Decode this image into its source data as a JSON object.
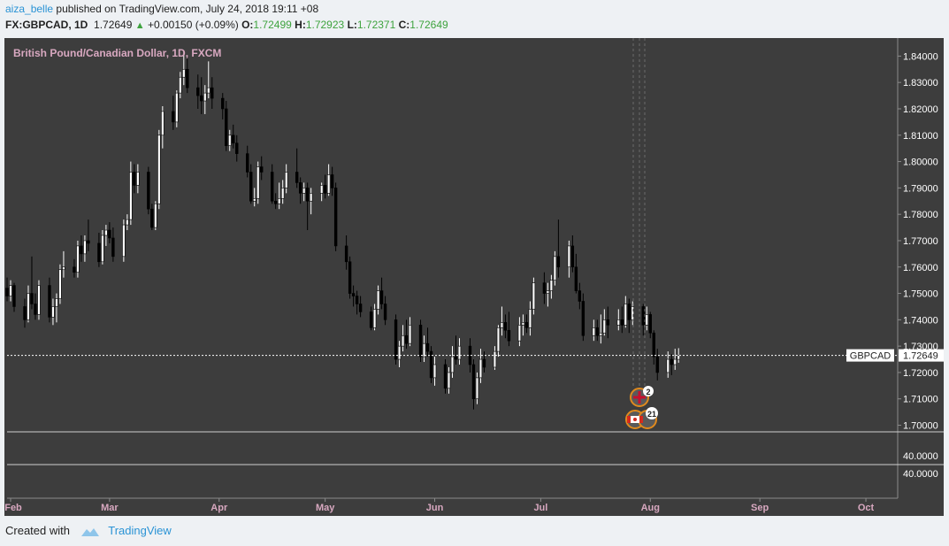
{
  "header": {
    "user": "aiza_belle",
    "published_text": "published on TradingView.com, July 24, 2018 19:11 +08",
    "symbol": "FX:GBPCAD, 1D",
    "last": "1.72649",
    "change": "+0.00150 (+0.09%)",
    "o_label": "O:",
    "o": "1.72499",
    "h_label": "H:",
    "h": "1.72923",
    "l_label": "L:",
    "l": "1.72371",
    "c_label": "C:",
    "c": "1.72649"
  },
  "footer": {
    "created_with": "Created with",
    "brand": "TradingView"
  },
  "colors": {
    "pane_bg": "#3d3d3d",
    "axis_bg": "#3d3d3d",
    "up": "#ffffff",
    "down": "#000000",
    "pane_title": "#d8a8c0",
    "axis_text": "#ffffff",
    "month_text": "#d8a8c0",
    "price_line": "#ffffff"
  },
  "events": {
    "gb_badge": "2",
    "ca_badge": "21"
  },
  "chart_data": {
    "type": "candlestick",
    "title": "British Pound/Canadian Dollar, 1D, FXCM",
    "symbol_label": "GBPCAD",
    "last_price": 1.72649,
    "last_price_label": "1.72649",
    "y_ticks": [
      "1.84000",
      "1.83000",
      "1.82000",
      "1.81000",
      "1.80000",
      "1.79000",
      "1.78000",
      "1.77000",
      "1.76000",
      "1.75000",
      "1.74000",
      "1.73000",
      "1.72000",
      "1.71000",
      "1.70000"
    ],
    "ylim": [
      1.6985,
      1.8455
    ],
    "sub_panes": [
      {
        "label": "40.0000"
      },
      {
        "label": "40.0000"
      }
    ],
    "x_labels": [
      "Feb",
      "Mar",
      "Apr",
      "May",
      "Jun",
      "Jul",
      "Aug",
      "Sep",
      "Oct"
    ],
    "x_label_dates": [
      "2018-02-01",
      "2018-03-01",
      "2018-04-01",
      "2018-05-01",
      "2018-06-01",
      "2018-07-01",
      "2018-08-01",
      "2018-09-01",
      "2018-10-01"
    ],
    "x_range": [
      "2018-01-31",
      "2018-10-09"
    ],
    "candles": [
      [
        "2018-01-31",
        1.752,
        1.756,
        1.747,
        1.749
      ],
      [
        "2018-02-01",
        1.749,
        1.755,
        1.747,
        1.753
      ],
      [
        "2018-02-02",
        1.753,
        1.754,
        1.743,
        1.745
      ],
      [
        "2018-02-05",
        1.745,
        1.748,
        1.737,
        1.74
      ],
      [
        "2018-02-06",
        1.74,
        1.753,
        1.739,
        1.75
      ],
      [
        "2018-02-07",
        1.75,
        1.764,
        1.744,
        1.746
      ],
      [
        "2018-02-08",
        1.746,
        1.75,
        1.74,
        1.742
      ],
      [
        "2018-02-09",
        1.742,
        1.755,
        1.74,
        1.753
      ],
      [
        "2018-02-12",
        1.753,
        1.756,
        1.739,
        1.741
      ],
      [
        "2018-02-13",
        1.741,
        1.748,
        1.738,
        1.745
      ],
      [
        "2018-02-14",
        1.745,
        1.75,
        1.739,
        1.748
      ],
      [
        "2018-02-15",
        1.748,
        1.761,
        1.746,
        1.759
      ],
      [
        "2018-02-16",
        1.759,
        1.766,
        1.756,
        1.76
      ],
      [
        "2018-02-19",
        1.76,
        1.763,
        1.756,
        1.758
      ],
      [
        "2018-02-20",
        1.758,
        1.77,
        1.756,
        1.768
      ],
      [
        "2018-02-21",
        1.768,
        1.772,
        1.762,
        1.765
      ],
      [
        "2018-02-22",
        1.765,
        1.772,
        1.762,
        1.77
      ],
      [
        "2018-02-23",
        1.77,
        1.778,
        1.766,
        1.769
      ],
      [
        "2018-02-26",
        1.769,
        1.773,
        1.76,
        1.762
      ],
      [
        "2018-02-27",
        1.762,
        1.774,
        1.761,
        1.772
      ],
      [
        "2018-02-28",
        1.772,
        1.776,
        1.768,
        1.774
      ],
      [
        "2018-03-01",
        1.774,
        1.777,
        1.769,
        1.771
      ],
      [
        "2018-03-02",
        1.771,
        1.775,
        1.762,
        1.764
      ],
      [
        "2018-03-05",
        1.764,
        1.778,
        1.762,
        1.776
      ],
      [
        "2018-03-06",
        1.776,
        1.78,
        1.774,
        1.778
      ],
      [
        "2018-03-07",
        1.778,
        1.8,
        1.776,
        1.796
      ],
      [
        "2018-03-08",
        1.796,
        1.799,
        1.788,
        1.791
      ],
      [
        "2018-03-09",
        1.791,
        1.799,
        1.788,
        1.796
      ],
      [
        "2018-03-12",
        1.796,
        1.798,
        1.78,
        1.782
      ],
      [
        "2018-03-13",
        1.782,
        1.784,
        1.774,
        1.775
      ],
      [
        "2018-03-14",
        1.775,
        1.785,
        1.774,
        1.784
      ],
      [
        "2018-03-15",
        1.784,
        1.812,
        1.782,
        1.81
      ],
      [
        "2018-03-16",
        1.81,
        1.821,
        1.805,
        1.819
      ],
      [
        "2018-03-19",
        1.819,
        1.825,
        1.812,
        1.815
      ],
      [
        "2018-03-20",
        1.815,
        1.827,
        1.813,
        1.826
      ],
      [
        "2018-03-21",
        1.826,
        1.834,
        1.824,
        1.832
      ],
      [
        "2018-03-22",
        1.832,
        1.842,
        1.829,
        1.835
      ],
      [
        "2018-03-23",
        1.835,
        1.839,
        1.826,
        1.828
      ],
      [
        "2018-03-26",
        1.828,
        1.833,
        1.82,
        1.825
      ],
      [
        "2018-03-27",
        1.825,
        1.832,
        1.818,
        1.823
      ],
      [
        "2018-03-28",
        1.823,
        1.829,
        1.818,
        1.826
      ],
      [
        "2018-03-29",
        1.826,
        1.838,
        1.824,
        1.828
      ],
      [
        "2018-03-30",
        1.828,
        1.832,
        1.82,
        1.824
      ],
      [
        "2018-04-02",
        1.824,
        1.826,
        1.816,
        1.82
      ],
      [
        "2018-04-03",
        1.82,
        1.823,
        1.804,
        1.806
      ],
      [
        "2018-04-04",
        1.806,
        1.812,
        1.804,
        1.81
      ],
      [
        "2018-04-05",
        1.81,
        1.814,
        1.805,
        1.807
      ],
      [
        "2018-04-06",
        1.807,
        1.81,
        1.8,
        1.803
      ],
      [
        "2018-04-09",
        1.803,
        1.806,
        1.794,
        1.796
      ],
      [
        "2018-04-10",
        1.796,
        1.799,
        1.784,
        1.785
      ],
      [
        "2018-04-11",
        1.785,
        1.79,
        1.783,
        1.786
      ],
      [
        "2018-04-12",
        1.786,
        1.8,
        1.784,
        1.798
      ],
      [
        "2018-04-13",
        1.798,
        1.802,
        1.793,
        1.796
      ],
      [
        "2018-04-16",
        1.796,
        1.799,
        1.784,
        1.785
      ],
      [
        "2018-04-17",
        1.785,
        1.788,
        1.782,
        1.784
      ],
      [
        "2018-04-18",
        1.784,
        1.792,
        1.782,
        1.786
      ],
      [
        "2018-04-19",
        1.786,
        1.793,
        1.784,
        1.79
      ],
      [
        "2018-04-20",
        1.79,
        1.799,
        1.788,
        1.796
      ],
      [
        "2018-04-23",
        1.796,
        1.805,
        1.79,
        1.792
      ],
      [
        "2018-04-24",
        1.792,
        1.794,
        1.784,
        1.788
      ],
      [
        "2018-04-25",
        1.788,
        1.792,
        1.785,
        1.79
      ],
      [
        "2018-04-26",
        1.79,
        1.792,
        1.774,
        1.785
      ],
      [
        "2018-04-27",
        1.785,
        1.79,
        1.78,
        1.788
      ],
      [
        "2018-04-30",
        1.788,
        1.792,
        1.785,
        1.791
      ],
      [
        "2018-05-01",
        1.791,
        1.795,
        1.786,
        1.788
      ],
      [
        "2018-05-02",
        1.788,
        1.799,
        1.787,
        1.795
      ],
      [
        "2018-05-03",
        1.795,
        1.798,
        1.787,
        1.79
      ],
      [
        "2018-05-04",
        1.79,
        1.792,
        1.766,
        1.768
      ],
      [
        "2018-05-07",
        1.768,
        1.772,
        1.759,
        1.762
      ],
      [
        "2018-05-08",
        1.762,
        1.764,
        1.748,
        1.75
      ],
      [
        "2018-05-09",
        1.75,
        1.753,
        1.745,
        1.749
      ],
      [
        "2018-05-10",
        1.749,
        1.751,
        1.742,
        1.746
      ],
      [
        "2018-05-11",
        1.746,
        1.749,
        1.741,
        1.743
      ],
      [
        "2018-05-14",
        1.743,
        1.745,
        1.736,
        1.737
      ],
      [
        "2018-05-15",
        1.737,
        1.746,
        1.736,
        1.744
      ],
      [
        "2018-05-16",
        1.744,
        1.753,
        1.742,
        1.751
      ],
      [
        "2018-05-17",
        1.751,
        1.756,
        1.744,
        1.746
      ],
      [
        "2018-05-18",
        1.746,
        1.749,
        1.738,
        1.74
      ],
      [
        "2018-05-21",
        1.74,
        1.742,
        1.723,
        1.725
      ],
      [
        "2018-05-22",
        1.725,
        1.732,
        1.722,
        1.73
      ],
      [
        "2018-05-23",
        1.73,
        1.738,
        1.728,
        1.734
      ],
      [
        "2018-05-24",
        1.734,
        1.74,
        1.729,
        1.731
      ],
      [
        "2018-05-25",
        1.731,
        1.741,
        1.73,
        1.738
      ],
      [
        "2018-05-28",
        1.738,
        1.74,
        1.724,
        1.726
      ],
      [
        "2018-05-29",
        1.726,
        1.734,
        1.724,
        1.731
      ],
      [
        "2018-05-30",
        1.731,
        1.737,
        1.726,
        1.728
      ],
      [
        "2018-05-31",
        1.728,
        1.73,
        1.716,
        1.718
      ],
      [
        "2018-06-01",
        1.718,
        1.726,
        1.715,
        1.723
      ],
      [
        "2018-06-04",
        1.723,
        1.725,
        1.712,
        1.714
      ],
      [
        "2018-06-05",
        1.714,
        1.722,
        1.712,
        1.72
      ],
      [
        "2018-06-06",
        1.72,
        1.73,
        1.718,
        1.726
      ],
      [
        "2018-06-07",
        1.726,
        1.734,
        1.723,
        1.725
      ],
      [
        "2018-06-08",
        1.725,
        1.733,
        1.723,
        1.73
      ],
      [
        "2018-06-11",
        1.73,
        1.733,
        1.72,
        1.723
      ],
      [
        "2018-06-12",
        1.723,
        1.725,
        1.706,
        1.71
      ],
      [
        "2018-06-13",
        1.71,
        1.72,
        1.708,
        1.718
      ],
      [
        "2018-06-14",
        1.718,
        1.729,
        1.716,
        1.725
      ],
      [
        "2018-06-15",
        1.725,
        1.728,
        1.72,
        1.722
      ],
      [
        "2018-06-18",
        1.722,
        1.73,
        1.721,
        1.728
      ],
      [
        "2018-06-19",
        1.728,
        1.738,
        1.726,
        1.737
      ],
      [
        "2018-06-20",
        1.737,
        1.745,
        1.734,
        1.739
      ],
      [
        "2018-06-21",
        1.739,
        1.742,
        1.733,
        1.736
      ],
      [
        "2018-06-22",
        1.736,
        1.743,
        1.73,
        1.732
      ],
      [
        "2018-06-25",
        1.732,
        1.741,
        1.73,
        1.738
      ],
      [
        "2018-06-26",
        1.738,
        1.742,
        1.734,
        1.739
      ],
      [
        "2018-06-27",
        1.739,
        1.742,
        1.735,
        1.737
      ],
      [
        "2018-06-28",
        1.737,
        1.747,
        1.734,
        1.744
      ],
      [
        "2018-06-29",
        1.744,
        1.756,
        1.742,
        1.754
      ],
      [
        "2018-07-02",
        1.754,
        1.758,
        1.746,
        1.75
      ],
      [
        "2018-07-03",
        1.75,
        1.754,
        1.745,
        1.751
      ],
      [
        "2018-07-04",
        1.751,
        1.757,
        1.748,
        1.755
      ],
      [
        "2018-07-05",
        1.755,
        1.766,
        1.753,
        1.764
      ],
      [
        "2018-07-06",
        1.764,
        1.778,
        1.756,
        1.76
      ],
      [
        "2018-07-09",
        1.76,
        1.77,
        1.756,
        1.768
      ],
      [
        "2018-07-10",
        1.768,
        1.772,
        1.758,
        1.76
      ],
      [
        "2018-07-11",
        1.76,
        1.765,
        1.75,
        1.751
      ],
      [
        "2018-07-12",
        1.751,
        1.754,
        1.744,
        1.747
      ],
      [
        "2018-07-13",
        1.747,
        1.75,
        1.732,
        1.734
      ],
      [
        "2018-07-16",
        1.734,
        1.74,
        1.732,
        1.737
      ],
      [
        "2018-07-17",
        1.737,
        1.74,
        1.732,
        1.734
      ],
      [
        "2018-07-18",
        1.734,
        1.742,
        1.731,
        1.735
      ],
      [
        "2018-07-19",
        1.735,
        1.744,
        1.734,
        1.74
      ],
      [
        "2018-07-20",
        1.74,
        1.745,
        1.733,
        1.738
      ],
      [
        "2018-07-23",
        1.738,
        1.744,
        1.736,
        1.74
      ],
      [
        "2018-07-24",
        1.74,
        1.745,
        1.735,
        1.738
      ],
      [
        "2018-07-25",
        1.738,
        1.749,
        1.737,
        1.746
      ],
      [
        "2018-07-26",
        1.746,
        1.748,
        1.735,
        1.74
      ],
      [
        "2018-07-27",
        1.74,
        1.747,
        1.738,
        1.745
      ],
      [
        "2018-07-30",
        1.745,
        1.746,
        1.734,
        1.738
      ],
      [
        "2018-07-31",
        1.738,
        1.745,
        1.736,
        1.742
      ],
      [
        "2018-08-01",
        1.742,
        1.743,
        1.733,
        1.735
      ],
      [
        "2018-08-02",
        1.735,
        1.736,
        1.723,
        1.726
      ],
      [
        "2018-08-03",
        1.726,
        1.729,
        1.717,
        1.72
      ],
      [
        "2018-08-06",
        1.72,
        1.728,
        1.718,
        1.725
      ],
      [
        "2018-08-07",
        1.725,
        1.727,
        1.719,
        1.723
      ],
      [
        "2018-08-08",
        1.723,
        1.729,
        1.721,
        1.725
      ],
      [
        "2018-08-09",
        1.72499,
        1.72923,
        1.72371,
        1.72649
      ]
    ]
  }
}
